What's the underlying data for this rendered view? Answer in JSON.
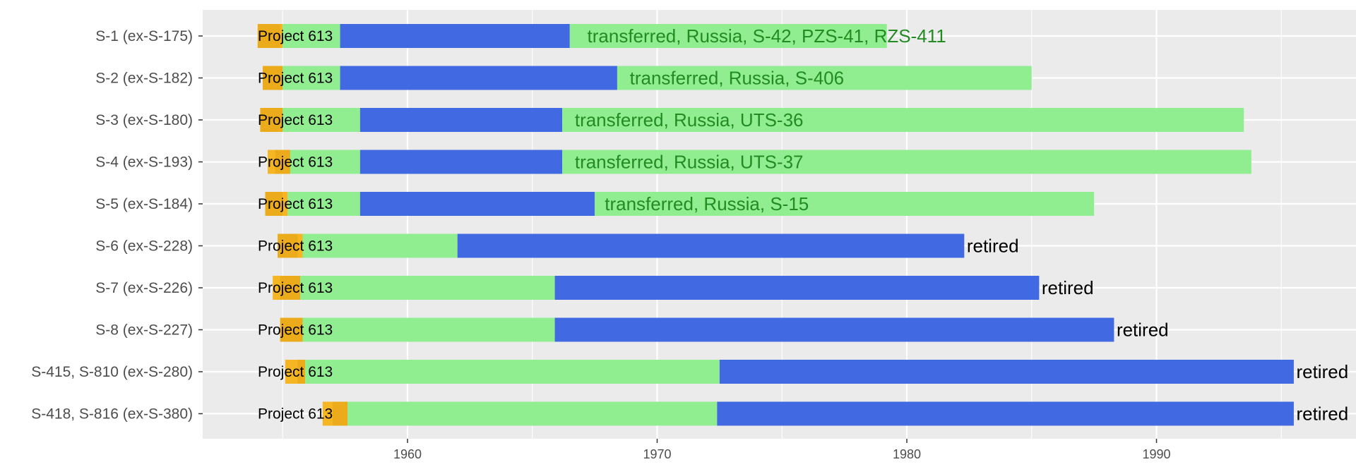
{
  "chart_data": {
    "type": "bar",
    "subtype": "timeline",
    "orientation": "horizontal",
    "xlim": [
      1952,
      1997.5
    ],
    "x_ticks": [
      1960,
      1970,
      1980,
      1990
    ],
    "grid": true,
    "legend": "none",
    "colors": {
      "construction": "#f6b624",
      "construction_dark": "#ebab1a",
      "phase_green": "#90ee90",
      "phase_blue": "#4169e1",
      "transferred_text": "#228b22",
      "retired_text": "#000000",
      "panel": "#ebebeb",
      "grid": "#ffffff"
    },
    "rows": [
      {
        "label": "S-1  (ex-S-175)",
        "build_label": "Project 613",
        "construction": [
          1954.0,
          1955.0
        ],
        "construction_dark": [
          1954.0,
          1954.9
        ],
        "segments": [
          {
            "color": "green",
            "start": 1955.0,
            "end": 1957.3
          },
          {
            "color": "blue",
            "start": 1957.3,
            "end": 1966.5
          },
          {
            "color": "green",
            "start": 1966.5,
            "end": 1979.2
          }
        ],
        "fate": "transferred, Russia, S-42, PZS-41, RZS-411",
        "fate_type": "transferred",
        "fate_x": 1967.2
      },
      {
        "label": "S-2  (ex-S-182)",
        "build_label": "Project 613",
        "construction": [
          1954.2,
          1955.0
        ],
        "construction_dark": [
          1954.2,
          1955.0
        ],
        "segments": [
          {
            "color": "green",
            "start": 1955.0,
            "end": 1957.3
          },
          {
            "color": "blue",
            "start": 1957.3,
            "end": 1968.4
          },
          {
            "color": "green",
            "start": 1968.4,
            "end": 1985.0
          }
        ],
        "fate": "transferred, Russia, S-406",
        "fate_type": "transferred",
        "fate_x": 1968.9
      },
      {
        "label": "S-3  (ex-S-180)",
        "build_label": "Project 613",
        "construction": [
          1954.1,
          1955.0
        ],
        "construction_dark": [
          1954.1,
          1955.0
        ],
        "segments": [
          {
            "color": "green",
            "start": 1955.0,
            "end": 1958.1
          },
          {
            "color": "blue",
            "start": 1958.1,
            "end": 1966.2
          },
          {
            "color": "green",
            "start": 1966.2,
            "end": 1993.5
          }
        ],
        "fate": "transferred, Russia, UTS-36",
        "fate_type": "transferred",
        "fate_x": 1966.7
      },
      {
        "label": "S-4  (ex-S-193)",
        "build_label": "Project 613",
        "construction": [
          1954.4,
          1955.3
        ],
        "construction_dark": [
          1954.7,
          1955.3
        ],
        "segments": [
          {
            "color": "green",
            "start": 1955.3,
            "end": 1958.1
          },
          {
            "color": "blue",
            "start": 1958.1,
            "end": 1966.2
          },
          {
            "color": "green",
            "start": 1966.2,
            "end": 1993.8
          }
        ],
        "fate": "transferred, Russia, UTS-37",
        "fate_type": "transferred",
        "fate_x": 1966.7
      },
      {
        "label": "S-5  (ex-S-184)",
        "build_label": "Project 613",
        "construction": [
          1954.3,
          1955.2
        ],
        "construction_dark": [
          1954.3,
          1955.0
        ],
        "segments": [
          {
            "color": "green",
            "start": 1955.2,
            "end": 1958.1
          },
          {
            "color": "blue",
            "start": 1958.1,
            "end": 1967.5
          },
          {
            "color": "green",
            "start": 1967.5,
            "end": 1987.5
          }
        ],
        "fate": "transferred, Russia, S-15",
        "fate_type": "transferred",
        "fate_x": 1967.9
      },
      {
        "label": "S-6  (ex-S-228)",
        "build_label": "Project 613",
        "construction": [
          1954.8,
          1955.8
        ],
        "construction_dark": [
          1954.8,
          1955.6
        ],
        "segments": [
          {
            "color": "green",
            "start": 1955.8,
            "end": 1962.0
          },
          {
            "color": "blue",
            "start": 1962.0,
            "end": 1982.3
          }
        ],
        "fate": "retired",
        "fate_type": "retired",
        "fate_x": 1982.4
      },
      {
        "label": "S-7  (ex-S-226)",
        "build_label": "Project 613",
        "construction": [
          1954.6,
          1955.7
        ],
        "construction_dark": [
          1954.9,
          1955.7
        ],
        "segments": [
          {
            "color": "green",
            "start": 1955.7,
            "end": 1965.9
          },
          {
            "color": "blue",
            "start": 1965.9,
            "end": 1985.3
          }
        ],
        "fate": "retired",
        "fate_type": "retired",
        "fate_x": 1985.4
      },
      {
        "label": "S-8  (ex-S-227)",
        "build_label": "Project 613",
        "construction": [
          1954.9,
          1955.8
        ],
        "construction_dark": [
          1954.9,
          1955.8
        ],
        "segments": [
          {
            "color": "green",
            "start": 1955.8,
            "end": 1965.9
          },
          {
            "color": "blue",
            "start": 1965.9,
            "end": 1988.3
          }
        ],
        "fate": "retired",
        "fate_type": "retired",
        "fate_x": 1988.4
      },
      {
        "label": "S-415, S-810  (ex-S-280)",
        "build_label": "Project 613",
        "construction": [
          1955.1,
          1955.9
        ],
        "construction_dark": [
          1955.6,
          1955.9
        ],
        "segments": [
          {
            "color": "green",
            "start": 1955.9,
            "end": 1972.5
          },
          {
            "color": "blue",
            "start": 1972.5,
            "end": 1995.5
          }
        ],
        "fate": "retired",
        "fate_type": "retired",
        "fate_x": 1995.6
      },
      {
        "label": "S-418, S-816  (ex-S-380)",
        "build_label": "Project 613",
        "construction": [
          1956.6,
          1957.6
        ],
        "construction_dark": [
          1957.0,
          1957.6
        ],
        "segments": [
          {
            "color": "green",
            "start": 1957.6,
            "end": 1972.4
          },
          {
            "color": "blue",
            "start": 1972.4,
            "end": 1995.5
          }
        ],
        "fate": "retired",
        "fate_type": "retired",
        "fate_x": 1995.6
      }
    ]
  }
}
